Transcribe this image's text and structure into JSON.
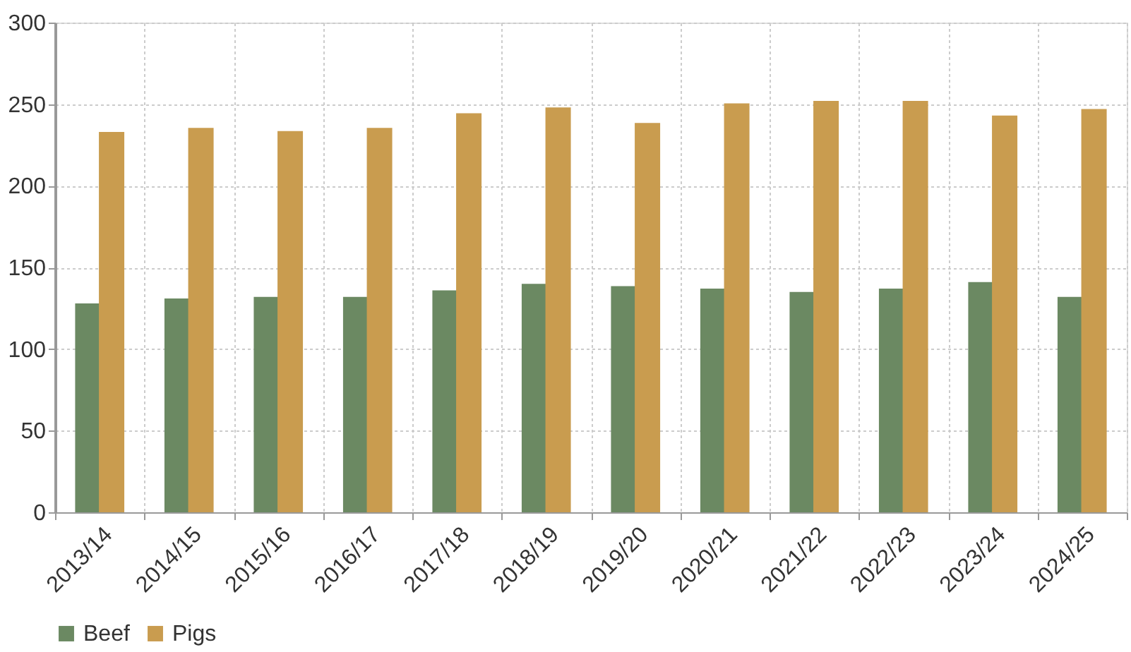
{
  "chart_data": {
    "type": "bar",
    "categories": [
      "2013/14",
      "2014/15",
      "2015/16",
      "2016/17",
      "2017/18",
      "2018/19",
      "2019/20",
      "2020/21",
      "2021/22",
      "2022/23",
      "2023/24",
      "2024/25"
    ],
    "series": [
      {
        "name": "Beef",
        "color": "#6b8962",
        "values": [
          128,
          131,
          132,
          132,
          136,
          140,
          138.5,
          137,
          135,
          137,
          141,
          132
        ]
      },
      {
        "name": "Pigs",
        "color": "#c99c4f",
        "values": [
          233,
          235.5,
          233.5,
          235.5,
          244.5,
          248,
          238.5,
          250.5,
          252,
          252,
          243,
          247
        ]
      }
    ],
    "ylim": [
      0,
      300
    ],
    "yticks": [
      0,
      50,
      100,
      150,
      200,
      250,
      300
    ],
    "grid": true,
    "legend": "bottom"
  }
}
